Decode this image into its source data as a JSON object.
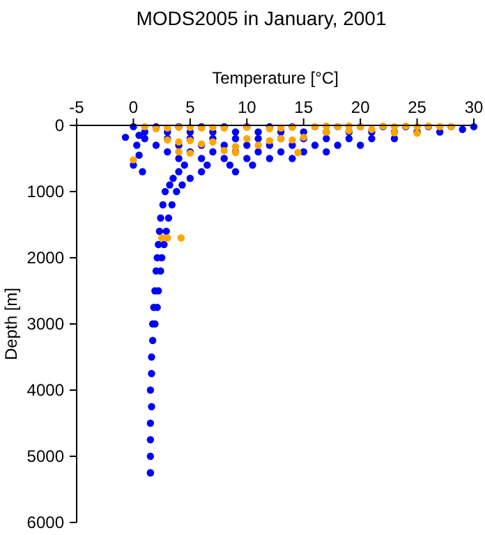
{
  "chart_data": {
    "type": "scatter",
    "title": "MODS2005 in January, 2001",
    "xlabel": "Temperature [°C]",
    "ylabel": "Depth [m]",
    "xlim": [
      -5,
      30
    ],
    "ylim": [
      6000,
      0
    ],
    "xticks": [
      -5,
      0,
      5,
      10,
      15,
      20,
      25,
      30
    ],
    "yticks": [
      0,
      1000,
      2000,
      3000,
      4000,
      5000,
      6000
    ],
    "marker": "circle",
    "series": [
      {
        "color": "#0000ff",
        "x": [
          0,
          2,
          4,
          6,
          8,
          10,
          12,
          14,
          16,
          18,
          20,
          22,
          24,
          26,
          28,
          30,
          1,
          3,
          5,
          7,
          9,
          11,
          13,
          15,
          17,
          19,
          21,
          23,
          25,
          27,
          29,
          1,
          3,
          5,
          7,
          9,
          11,
          13,
          15,
          17,
          19,
          21,
          23,
          2,
          4,
          6,
          8,
          10,
          12,
          14,
          16,
          18,
          20,
          3,
          5,
          7,
          9,
          11,
          13,
          15,
          17,
          4,
          6,
          8,
          10,
          12,
          14,
          4.5,
          6.5,
          8.5,
          10.5,
          4,
          6,
          9,
          3.5,
          5,
          3.2,
          4.3,
          2.8,
          3.8,
          2.6,
          3.4,
          2.4,
          3.1,
          2.3,
          2.9,
          2.2,
          2.7,
          2.1,
          2.5,
          2,
          2.4,
          1.9,
          2.2,
          1.8,
          2.1,
          1.7,
          1.9,
          1.7,
          1.6,
          1.6,
          1.5,
          1.6,
          1.5,
          1.5,
          1.5,
          1.5,
          1.5,
          0.5,
          0.3,
          0.5,
          0,
          -0.7,
          0.8
        ],
        "values": [
          20,
          20,
          20,
          20,
          20,
          20,
          20,
          20,
          20,
          20,
          20,
          20,
          20,
          20,
          20,
          20,
          100,
          100,
          100,
          100,
          100,
          100,
          100,
          100,
          100,
          100,
          100,
          100,
          100,
          100,
          60,
          200,
          200,
          200,
          200,
          200,
          200,
          200,
          200,
          200,
          200,
          200,
          200,
          300,
          300,
          300,
          300,
          300,
          300,
          300,
          300,
          300,
          300,
          400,
          400,
          400,
          400,
          400,
          400,
          400,
          400,
          500,
          500,
          500,
          500,
          500,
          500,
          600,
          600,
          600,
          600,
          700,
          700,
          700,
          800,
          800,
          900,
          900,
          1000,
          1000,
          1200,
          1200,
          1400,
          1400,
          1600,
          1600,
          1800,
          1800,
          2000,
          2000,
          2200,
          2200,
          2500,
          2500,
          2750,
          2750,
          3000,
          3000,
          3250,
          3500,
          3750,
          4000,
          4250,
          4500,
          4750,
          5000,
          5250,
          5250,
          150,
          300,
          450,
          600,
          180,
          700
        ]
      },
      {
        "color": "#ffa500",
        "x": [
          1,
          2,
          3,
          4,
          5,
          6,
          7,
          8,
          10,
          12,
          13,
          14,
          16,
          17,
          18,
          19,
          20,
          22,
          23,
          24,
          25,
          26,
          27,
          28,
          3,
          4,
          5,
          6,
          7,
          9,
          10,
          11,
          12,
          13,
          14,
          15,
          17,
          19,
          21,
          23,
          25,
          14.5,
          8,
          9,
          5,
          0,
          4,
          2.5,
          3,
          4.2
        ],
        "values": [
          20,
          50,
          40,
          30,
          30,
          40,
          30,
          40,
          30,
          50,
          40,
          30,
          20,
          10,
          20,
          10,
          20,
          10,
          20,
          10,
          20,
          10,
          20,
          20,
          220,
          250,
          230,
          280,
          250,
          320,
          200,
          300,
          230,
          200,
          220,
          180,
          100,
          80,
          60,
          110,
          120,
          410,
          380,
          410,
          420,
          520,
          400,
          1700,
          1700,
          1700
        ]
      }
    ]
  }
}
